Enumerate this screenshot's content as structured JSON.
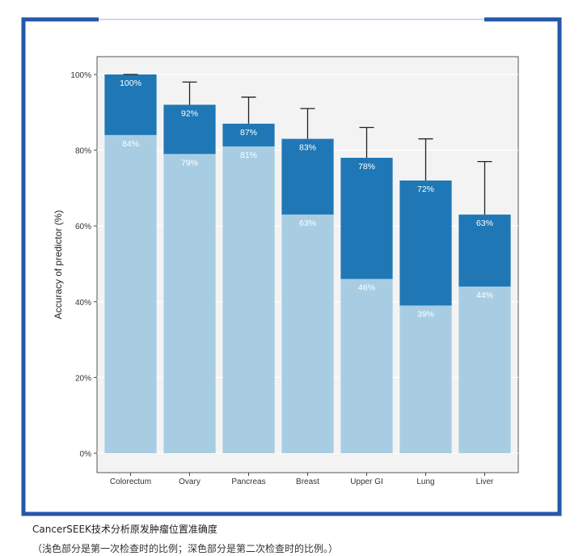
{
  "caption": {
    "line1": "CancerSEEK技术分析原发肿瘤位置准确度",
    "line2": "（浅色部分是第一次检查时的比例；深色部分是第二次检查时的比例。）"
  },
  "colors": {
    "light": "#a8cde3",
    "dark": "#1f78b5",
    "border": "#2457a8",
    "panel_bg": "#f3f3f3"
  },
  "chart_data": {
    "type": "bar",
    "ylabel": "Accuracy of predictor (%)",
    "ylim": [
      0,
      100
    ],
    "yticks": [
      "0%",
      "20%",
      "40%",
      "60%",
      "80%",
      "100%"
    ],
    "categories": [
      "Colorectum",
      "Ovary",
      "Pancreas",
      "Breast",
      "Upper GI",
      "Lung",
      "Liver"
    ],
    "series": [
      {
        "values": [
          84,
          79,
          81,
          63,
          46,
          39,
          44
        ],
        "labels": [
          "84%",
          "79%",
          "81%",
          "63%",
          "46%",
          "39%",
          "44%"
        ]
      },
      {
        "values": [
          100,
          92,
          87,
          83,
          78,
          72,
          63
        ],
        "labels": [
          "100%",
          "92%",
          "87%",
          "83%",
          "78%",
          "72%",
          "63%"
        ]
      }
    ],
    "error_upper": [
      100,
      98,
      94,
      91,
      86,
      83,
      77
    ],
    "grid": true
  }
}
